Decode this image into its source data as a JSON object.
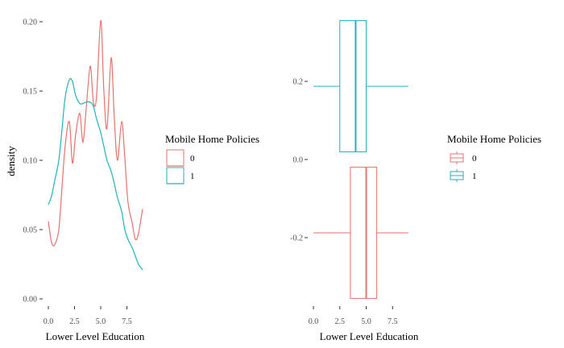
{
  "chart_data": [
    {
      "type": "density",
      "xlabel": "Lower Level Education",
      "ylabel": "density",
      "xlim": [
        0,
        9
      ],
      "ylim": [
        0,
        0.2
      ],
      "x_ticks": [
        "0.0",
        "2.5",
        "5.0",
        "7.5"
      ],
      "y_ticks": [
        "0.00",
        "0.05",
        "0.10",
        "0.15",
        "0.20"
      ],
      "grid": false,
      "legend": {
        "title": "Mobile Home Policies",
        "position": "right",
        "entries": [
          "0",
          "1"
        ]
      },
      "series": [
        {
          "name": "0",
          "color": "#e8726c",
          "x": [
            0,
            0.3,
            0.6,
            1.0,
            1.3,
            1.6,
            2.0,
            2.3,
            2.6,
            3.0,
            3.3,
            3.6,
            4.0,
            4.3,
            4.6,
            5.0,
            5.3,
            5.6,
            6.0,
            6.3,
            6.6,
            7.0,
            7.3,
            7.6,
            8.0,
            8.3,
            8.6,
            9.0
          ],
          "y": [
            0.056,
            0.041,
            0.039,
            0.05,
            0.08,
            0.11,
            0.128,
            0.098,
            0.118,
            0.134,
            0.113,
            0.136,
            0.168,
            0.142,
            0.146,
            0.201,
            0.15,
            0.123,
            0.174,
            0.13,
            0.1,
            0.128,
            0.102,
            0.07,
            0.055,
            0.043,
            0.047,
            0.065
          ]
        },
        {
          "name": "1",
          "color": "#1fb3bb",
          "x": [
            0,
            0.3,
            0.6,
            1.0,
            1.3,
            1.6,
            2.0,
            2.3,
            2.6,
            3.0,
            3.3,
            3.6,
            4.0,
            4.3,
            4.6,
            5.0,
            5.3,
            5.6,
            6.0,
            6.3,
            6.6,
            7.0,
            7.3,
            7.6,
            8.0,
            8.3,
            8.6,
            9.0
          ],
          "y": [
            0.068,
            0.074,
            0.085,
            0.1,
            0.122,
            0.145,
            0.158,
            0.157,
            0.147,
            0.141,
            0.141,
            0.142,
            0.142,
            0.139,
            0.13,
            0.12,
            0.11,
            0.1,
            0.092,
            0.083,
            0.073,
            0.063,
            0.05,
            0.043,
            0.037,
            0.031,
            0.025,
            0.021
          ]
        }
      ]
    },
    {
      "type": "boxplot",
      "orientation": "horizontal",
      "xlabel": "Lower Level Education",
      "ylabel": "",
      "xlim": [
        0,
        9
      ],
      "ylim": [
        -0.4,
        0.4
      ],
      "x_ticks": [
        "0.0",
        "2.5",
        "5.0",
        "7.5"
      ],
      "y_ticks": [
        "-0.2",
        "0.0",
        "0.2"
      ],
      "grid": false,
      "legend": {
        "title": "Mobile Home Policies",
        "position": "right",
        "entries": [
          "0",
          "1"
        ]
      },
      "series": [
        {
          "name": "0",
          "color": "#e8726c",
          "group_center": -0.1875,
          "min": 0,
          "q1": 3.5,
          "median": 5,
          "q3": 6,
          "max": 9
        },
        {
          "name": "1",
          "color": "#1fb3bb",
          "group_center": 0.1875,
          "min": 0,
          "q1": 2.5,
          "median": 4,
          "q3": 5,
          "max": 9
        }
      ]
    }
  ]
}
